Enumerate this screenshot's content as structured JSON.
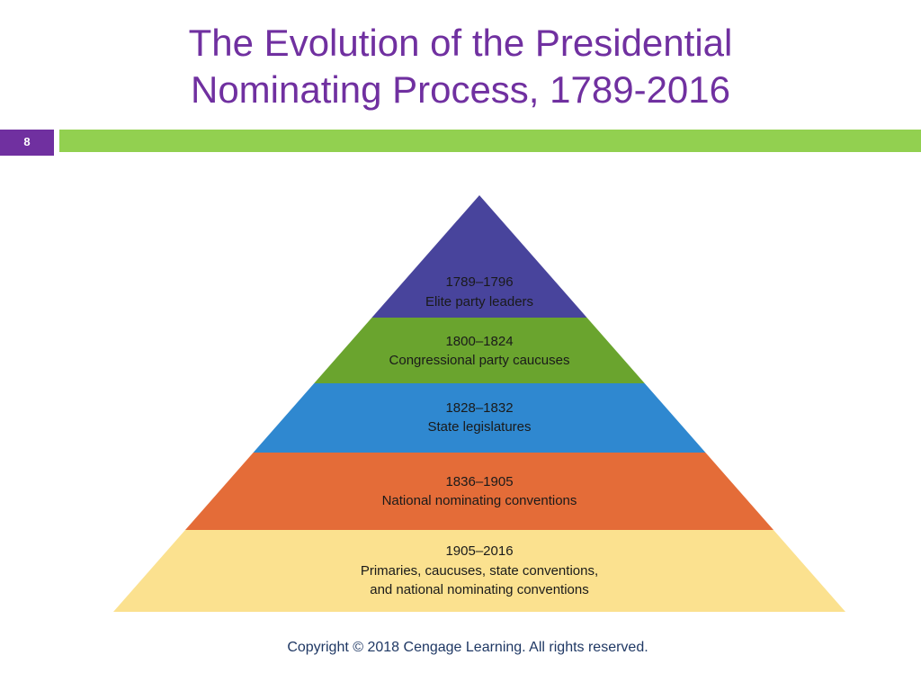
{
  "slide": {
    "title_line1": "The Evolution of the Presidential",
    "title_line2": "Nominating Process, 1789-2016",
    "number": "8",
    "copyright": "Copyright © 2018 Cengage Learning. All rights reserved."
  },
  "colors": {
    "title": "#7030a0",
    "accent_bar": "#92d050",
    "number_box": "#7030a0"
  },
  "pyramid": {
    "tiers": [
      {
        "period": "1789–1796",
        "lines": [
          "Elite party leaders"
        ],
        "color": "#48449c"
      },
      {
        "period": "1800–1824",
        "lines": [
          "Congressional party caucuses"
        ],
        "color": "#6aa42e"
      },
      {
        "period": "1828–1832",
        "lines": [
          "State legislatures"
        ],
        "color": "#2f88d0"
      },
      {
        "period": "1836–1905",
        "lines": [
          "National nominating conventions"
        ],
        "color": "#e46c38"
      },
      {
        "period": "1905–2016",
        "lines": [
          "Primaries, caucuses, state conventions,",
          "and national nominating conventions"
        ],
        "color": "#fbe18f"
      }
    ]
  }
}
